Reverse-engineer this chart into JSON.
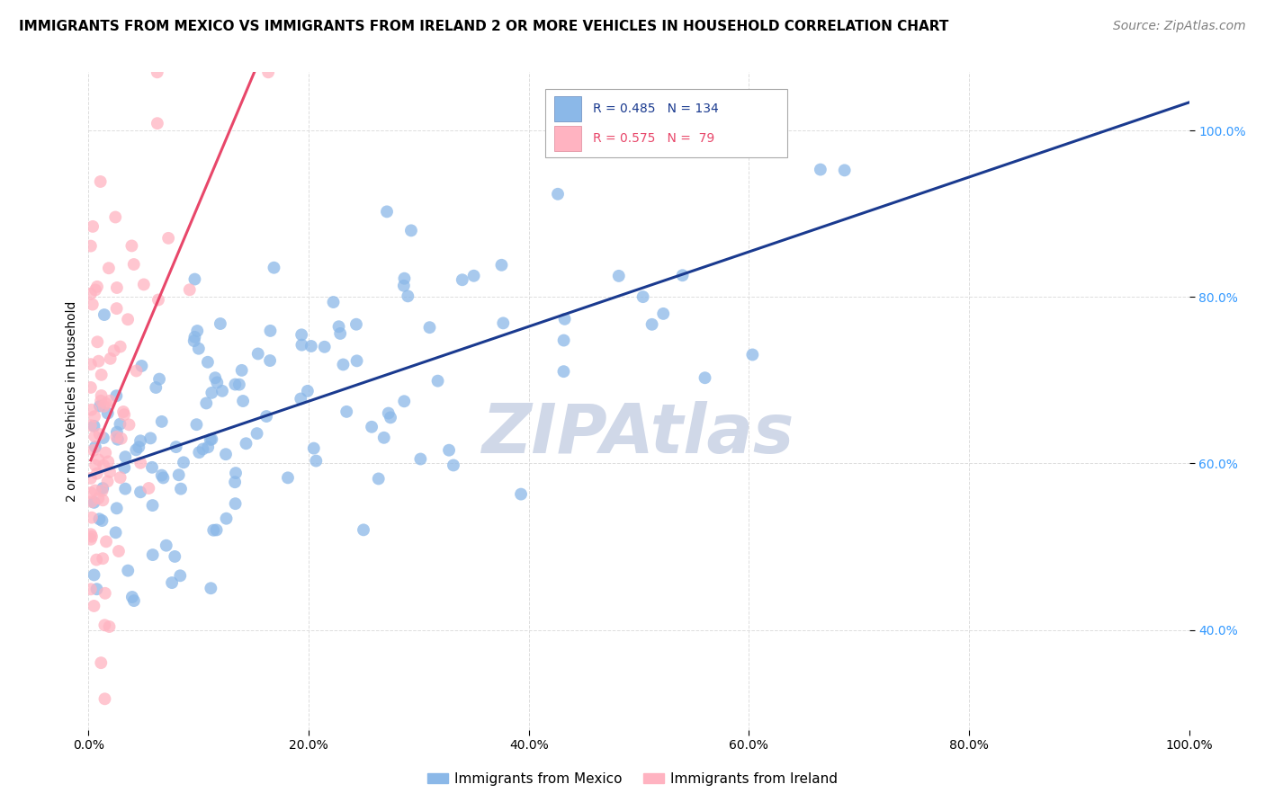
{
  "title": "IMMIGRANTS FROM MEXICO VS IMMIGRANTS FROM IRELAND 2 OR MORE VEHICLES IN HOUSEHOLD CORRELATION CHART",
  "source": "Source: ZipAtlas.com",
  "ylabel": "2 or more Vehicles in Household",
  "xlim": [
    0.0,
    100.0
  ],
  "ylim": [
    28.0,
    107.0
  ],
  "mexico_R": 0.485,
  "mexico_N": 134,
  "ireland_R": 0.575,
  "ireland_N": 79,
  "mexico_color": "#8BB8E8",
  "ireland_color": "#FFB3C1",
  "mexico_line_color": "#1A3A8F",
  "ireland_line_color": "#E8476A",
  "watermark": "ZIPAtlas",
  "watermark_color": "#D0D8E8",
  "legend_label_mexico": "Immigrants from Mexico",
  "legend_label_ireland": "Immigrants from Ireland",
  "background_color": "#FFFFFF",
  "grid_color": "#DDDDDD",
  "ytick_color": "#3399FF",
  "title_fontsize": 11,
  "source_fontsize": 10,
  "tick_fontsize": 10,
  "ylabel_fontsize": 10
}
